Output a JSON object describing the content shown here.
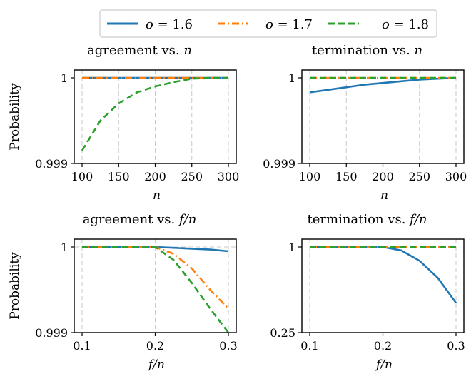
{
  "legend": [
    {
      "name": "o = 1.6",
      "var": "o",
      "value": "1.6",
      "color": "#1f77b4",
      "dash": "solid"
    },
    {
      "name": "o = 1.7",
      "var": "o",
      "value": "1.7",
      "color": "#ff7f0e",
      "dash": "dashdot"
    },
    {
      "name": "o = 1.8",
      "var": "o",
      "value": "1.8",
      "color": "#2ca02c",
      "dash": "dashed"
    }
  ],
  "chart_data": [
    {
      "type": "line",
      "title": "agreement vs. n",
      "title_parts": [
        "agreement vs.",
        "n"
      ],
      "xlabel": "n",
      "ylabel": "Probability",
      "xlim": [
        100,
        300
      ],
      "xticks": [
        100,
        150,
        200,
        250,
        300
      ],
      "xtick_labels": [
        "100",
        "150",
        "200",
        "250",
        "300"
      ],
      "ylim": [
        0.999,
        1.0
      ],
      "yticks": [
        0.999,
        1.0
      ],
      "ytick_labels": [
        "0.999",
        "1"
      ],
      "grid": "x",
      "x": [
        100,
        125,
        150,
        175,
        200,
        225,
        250,
        275,
        300
      ],
      "series": [
        {
          "name": "o = 1.6",
          "values": [
            1,
            1,
            1,
            1,
            1,
            1,
            1,
            1,
            1
          ]
        },
        {
          "name": "o = 1.7",
          "values": [
            1,
            1,
            1,
            1,
            1,
            1,
            1,
            1,
            1
          ]
        },
        {
          "name": "o = 1.8",
          "values": [
            0.99915,
            0.9995,
            0.9997,
            0.99983,
            0.9999,
            0.99995,
            0.99999,
            1.0,
            1.0
          ]
        }
      ]
    },
    {
      "type": "line",
      "title": "termination vs. n",
      "title_parts": [
        "termination vs.",
        "n"
      ],
      "xlabel": "n",
      "ylabel": "",
      "xlim": [
        100,
        300
      ],
      "xticks": [
        100,
        150,
        200,
        250,
        300
      ],
      "xtick_labels": [
        "100",
        "150",
        "200",
        "250",
        "300"
      ],
      "ylim": [
        0.999,
        1.0
      ],
      "yticks": [
        0.999,
        1.0
      ],
      "ytick_labels": [
        "0.999",
        "1"
      ],
      "grid": "x",
      "x": [
        100,
        125,
        150,
        175,
        200,
        225,
        250,
        275,
        300
      ],
      "series": [
        {
          "name": "o = 1.6",
          "values": [
            0.99983,
            0.99986,
            0.99989,
            0.99992,
            0.99994,
            0.99996,
            0.99998,
            0.99999,
            1.0
          ]
        },
        {
          "name": "o = 1.7",
          "values": [
            1,
            1,
            1,
            1,
            1,
            1,
            1,
            1,
            1
          ]
        },
        {
          "name": "o = 1.8",
          "values": [
            1,
            1,
            1,
            1,
            1,
            1,
            1,
            1,
            1
          ]
        }
      ]
    },
    {
      "type": "line",
      "title": "agreement vs. f/n",
      "title_parts": [
        "agreement vs.",
        "f/n"
      ],
      "xlabel": "f/n",
      "ylabel": "Probability",
      "xlim": [
        0.1,
        0.3
      ],
      "xticks": [
        0.1,
        0.2,
        0.3
      ],
      "xtick_labels": [
        "0.1",
        "0.2",
        "0.3"
      ],
      "ylim": [
        0.999,
        1.0
      ],
      "yticks": [
        0.999,
        1.0
      ],
      "ytick_labels": [
        "0.999",
        "1"
      ],
      "grid": "xy",
      "x": [
        0.1,
        0.125,
        0.15,
        0.175,
        0.2,
        0.225,
        0.25,
        0.275,
        0.3
      ],
      "series": [
        {
          "name": "o = 1.6",
          "values": [
            1,
            1,
            1,
            1,
            1,
            0.99999,
            0.99998,
            0.99997,
            0.99995
          ]
        },
        {
          "name": "o = 1.7",
          "values": [
            1,
            1,
            1,
            1,
            1,
            0.99992,
            0.99975,
            0.9995,
            0.99928
          ]
        },
        {
          "name": "o = 1.8",
          "values": [
            1,
            1,
            1,
            1,
            1,
            0.99985,
            0.99958,
            0.99928,
            0.999
          ]
        }
      ]
    },
    {
      "type": "line",
      "title": "termination vs. f/n",
      "title_parts": [
        "termination vs.",
        "f/n"
      ],
      "xlabel": "f/n",
      "ylabel": "",
      "xlim": [
        0.1,
        0.3
      ],
      "xticks": [
        0.1,
        0.2,
        0.3
      ],
      "xtick_labels": [
        "0.1",
        "0.2",
        "0.3"
      ],
      "ylim": [
        0.25,
        1.0
      ],
      "yticks": [
        0.25,
        1.0
      ],
      "ytick_labels": [
        "0.25",
        "1"
      ],
      "grid": "x",
      "x": [
        0.1,
        0.125,
        0.15,
        0.175,
        0.2,
        0.225,
        0.25,
        0.275,
        0.3
      ],
      "series": [
        {
          "name": "o = 1.6",
          "values": [
            1,
            1,
            1,
            1,
            1,
            0.97,
            0.88,
            0.73,
            0.51
          ]
        },
        {
          "name": "o = 1.7",
          "values": [
            1,
            1,
            1,
            1,
            1,
            1,
            1,
            1,
            1
          ]
        },
        {
          "name": "o = 1.8",
          "values": [
            1,
            1,
            1,
            1,
            1,
            1,
            1,
            1,
            1
          ]
        }
      ]
    }
  ]
}
